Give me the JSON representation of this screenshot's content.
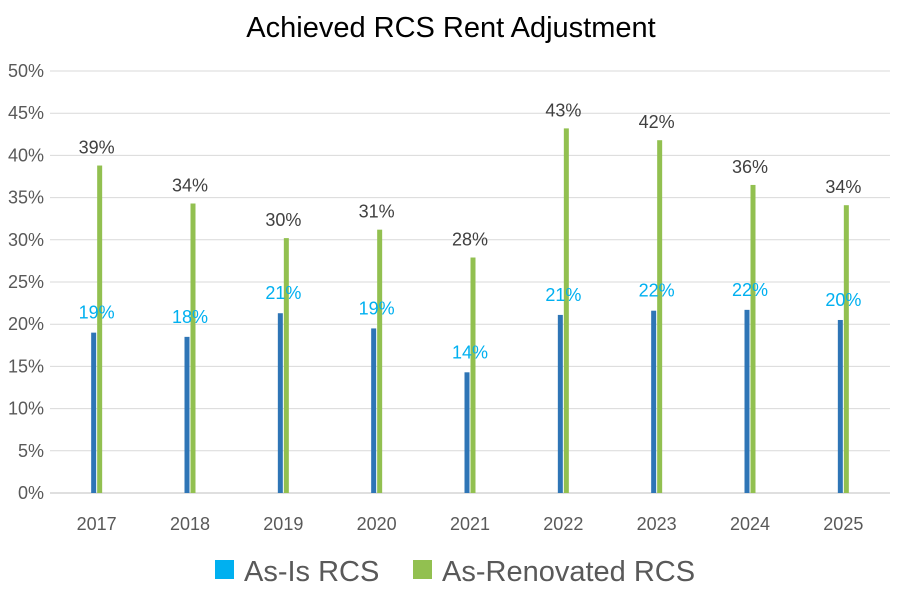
{
  "chart_data": {
    "type": "bar",
    "title": "Achieved RCS Rent Adjustment",
    "xlabel": "",
    "ylabel": "",
    "categories": [
      "2017",
      "2018",
      "2019",
      "2020",
      "2021",
      "2022",
      "2023",
      "2024",
      "2025"
    ],
    "series": [
      {
        "name": "As-Is RCS",
        "color": "#2E75B6",
        "label_color": "#00B0F0",
        "legend_color": "#00B0F0",
        "values": [
          0.19,
          0.185,
          0.213,
          0.195,
          0.143,
          0.211,
          0.216,
          0.217,
          0.205
        ],
        "labels": [
          "19%",
          "18%",
          "21%",
          "19%",
          "14%",
          "21%",
          "22%",
          "22%",
          "20%"
        ]
      },
      {
        "name": "As-Renovated RCS",
        "color": "#92C050",
        "label_color": "#404040",
        "legend_color": "#92C050",
        "values": [
          0.388,
          0.343,
          0.302,
          0.312,
          0.279,
          0.432,
          0.418,
          0.365,
          0.341
        ],
        "labels": [
          "39%",
          "34%",
          "30%",
          "31%",
          "28%",
          "43%",
          "42%",
          "36%",
          "34%"
        ]
      }
    ],
    "ylim": [
      0,
      0.5
    ],
    "yticks": [
      "0%",
      "5%",
      "10%",
      "15%",
      "20%",
      "25%",
      "30%",
      "35%",
      "40%",
      "45%",
      "50%"
    ],
    "grid": true,
    "legend_position": "bottom"
  }
}
